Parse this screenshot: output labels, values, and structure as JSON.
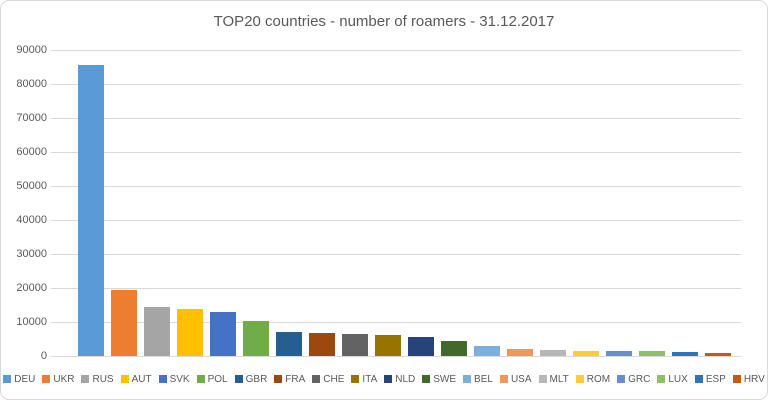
{
  "chart_data": {
    "type": "bar",
    "title": "TOP20 countries - number of roamers - 31.12.2017",
    "title_color": "#595959",
    "categories": [
      "DEU",
      "UKR",
      "RUS",
      "AUT",
      "SVK",
      "POL",
      "GBR",
      "FRA",
      "CHE",
      "ITA",
      "NLD",
      "SWE",
      "BEL",
      "USA",
      "MLT",
      "ROM",
      "GRC",
      "LUX",
      "ESP",
      "HRV"
    ],
    "values": [
      85500,
      19400,
      14400,
      13900,
      13000,
      10300,
      7100,
      6800,
      6500,
      6200,
      5700,
      4500,
      2800,
      2200,
      1900,
      1500,
      1500,
      1400,
      1200,
      1000
    ],
    "bar_colors": [
      "#5B9BD5",
      "#ED7D31",
      "#A5A5A5",
      "#FFC000",
      "#4472C4",
      "#70AD47",
      "#255E91",
      "#9E480E",
      "#636363",
      "#997300",
      "#264478",
      "#43682B",
      "#7CAFDD",
      "#F1975A",
      "#B7B7B7",
      "#FFCD33",
      "#698ED0",
      "#8CC168",
      "#2E75B6",
      "#C55A11"
    ],
    "xlabel": "",
    "ylabel": "",
    "ylim": [
      0,
      90000
    ],
    "ytick_interval": 10000,
    "yticks": [
      0,
      10000,
      20000,
      30000,
      40000,
      50000,
      60000,
      70000,
      80000,
      90000
    ],
    "ytick_labels": [
      "0",
      "10000",
      "20000",
      "30000",
      "40000",
      "50000",
      "60000",
      "70000",
      "80000",
      "90000"
    ],
    "grid": true,
    "gridline_color": "#D9D9D9",
    "axis_label_color": "#595959",
    "legend_position": "bottom"
  }
}
